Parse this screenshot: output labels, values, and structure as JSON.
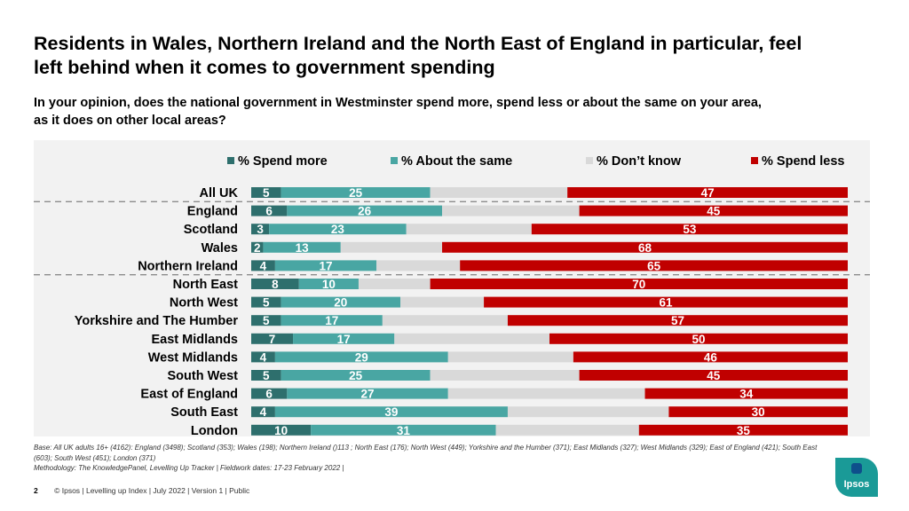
{
  "title": "Residents in Wales, Northern Ireland and the North East of England in particular, feel left behind when it comes to government spending",
  "subtitle": "In your opinion, does the national government in Westminster spend more, spend less or about the same on your area, as it does on other local areas?",
  "chart_data": {
    "type": "bar",
    "orientation": "horizontal",
    "stacked": true,
    "categories": [
      "All UK",
      "England",
      "Scotland",
      "Wales",
      "Northern Ireland",
      "North East",
      "North West",
      "Yorkshire and The Humber",
      "East Midlands",
      "West Midlands",
      "South West",
      "East of England",
      "South East",
      "London"
    ],
    "series": [
      {
        "name": "% Spend more",
        "color": "#2e6f6d",
        "values": [
          5,
          6,
          3,
          2,
          4,
          8,
          5,
          5,
          7,
          4,
          5,
          6,
          4,
          10
        ]
      },
      {
        "name": "% About the same",
        "color": "#49a6a3",
        "values": [
          25,
          26,
          23,
          13,
          17,
          10,
          20,
          17,
          17,
          29,
          25,
          27,
          39,
          31
        ]
      },
      {
        "name": "% Don’t know",
        "color": "#d9d9d9",
        "values": [
          23,
          23,
          21,
          17,
          14,
          12,
          14,
          21,
          26,
          21,
          25,
          33,
          27,
          24
        ],
        "labels_shown": false
      },
      {
        "name": "% Spend less",
        "color": "#c00000",
        "values": [
          47,
          45,
          53,
          68,
          65,
          70,
          61,
          57,
          50,
          46,
          45,
          34,
          30,
          35
        ]
      }
    ],
    "xlim": [
      0,
      100
    ],
    "legend": "top",
    "separators_after": [
      "All UK",
      "Northern Ireland"
    ]
  },
  "footnote": {
    "base": "Base: All UK adults 16+ (4162): England  (3498); Scotland (353); Wales (198); Northern Ireland ()113 ; North East (176); North West (449); Yorkshire and the Humber (371); East Midlands (327); West Midlands (329); East of England (421); South East (603); South West (451); London (371)",
    "methodology": "Methodology: The KnowledgePanel, Levelling Up Tracker |  Fieldwork dates: 17-23 February 2022 |"
  },
  "footer": {
    "page": "2",
    "text": "© Ipsos | Levelling up Index | July 2022 | Version 1 | Public"
  },
  "logo": {
    "text": "Ipsos"
  }
}
